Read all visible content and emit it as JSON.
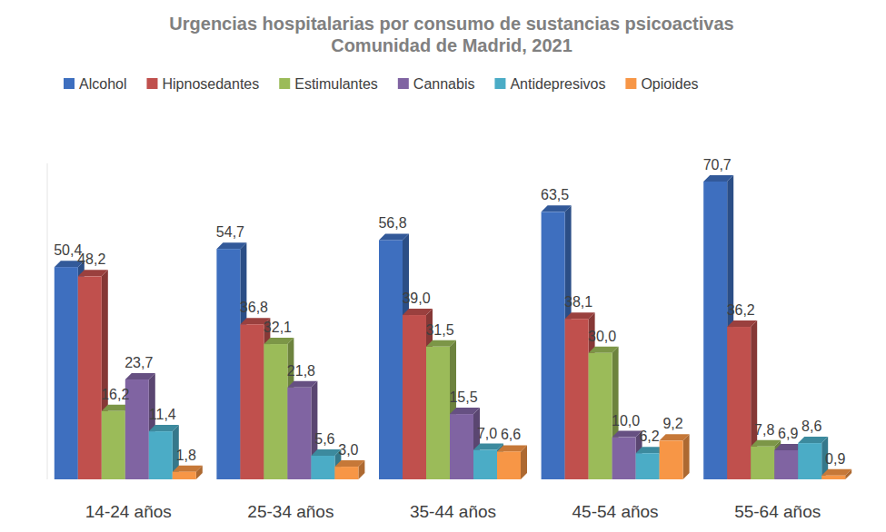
{
  "chart_data": {
    "type": "bar",
    "title": "Urgencias hospitalarias por consumo de sustancias psicoactivas",
    "subtitle": "Comunidad de Madrid, 2021",
    "categories": [
      "14-24 años",
      "25-34 años",
      "35-44 años",
      "45-54 años",
      "55-64 años"
    ],
    "series": [
      {
        "name": "Alcohol",
        "color": "#3e6fbf",
        "values": [
          50.4,
          54.7,
          56.8,
          63.5,
          70.7
        ],
        "value_labels": [
          "50,4",
          "54,7",
          "56,8",
          "63,5",
          "70,7"
        ]
      },
      {
        "name": "Hipnosedantes",
        "color": "#c0504d",
        "values": [
          48.2,
          36.8,
          39.0,
          38.1,
          36.2
        ],
        "value_labels": [
          "48,2",
          "36,8",
          "39,0",
          "38,1",
          "36,2"
        ]
      },
      {
        "name": "Estimulantes",
        "color": "#9bbb59",
        "values": [
          16.2,
          32.1,
          31.5,
          30.0,
          7.8
        ],
        "value_labels": [
          "16,2",
          "32,1",
          "31,5",
          "30,0",
          "7,8"
        ]
      },
      {
        "name": "Cannabis",
        "color": "#8064a2",
        "values": [
          23.7,
          21.8,
          15.5,
          10.0,
          6.9
        ],
        "value_labels": [
          "23,7",
          "21,8",
          "15,5",
          "10,0",
          "6,9"
        ]
      },
      {
        "name": "Antidepresivos",
        "color": "#4bacc6",
        "values": [
          11.4,
          5.6,
          7.0,
          6.2,
          8.6
        ],
        "value_labels": [
          "11,4",
          "5,6",
          "7,0",
          "6,2",
          "8,6"
        ]
      },
      {
        "name": "Opioides",
        "color": "#f79646",
        "values": [
          1.8,
          3.0,
          6.6,
          9.2,
          0.9
        ],
        "value_labels": [
          "1,8",
          "3,0",
          "6,6",
          "9,2",
          "0,9"
        ]
      }
    ],
    "ylim": [
      0,
      75
    ],
    "yticks": [],
    "tick_labels": "x",
    "grid": false,
    "legend": "top",
    "data_labels": true
  }
}
